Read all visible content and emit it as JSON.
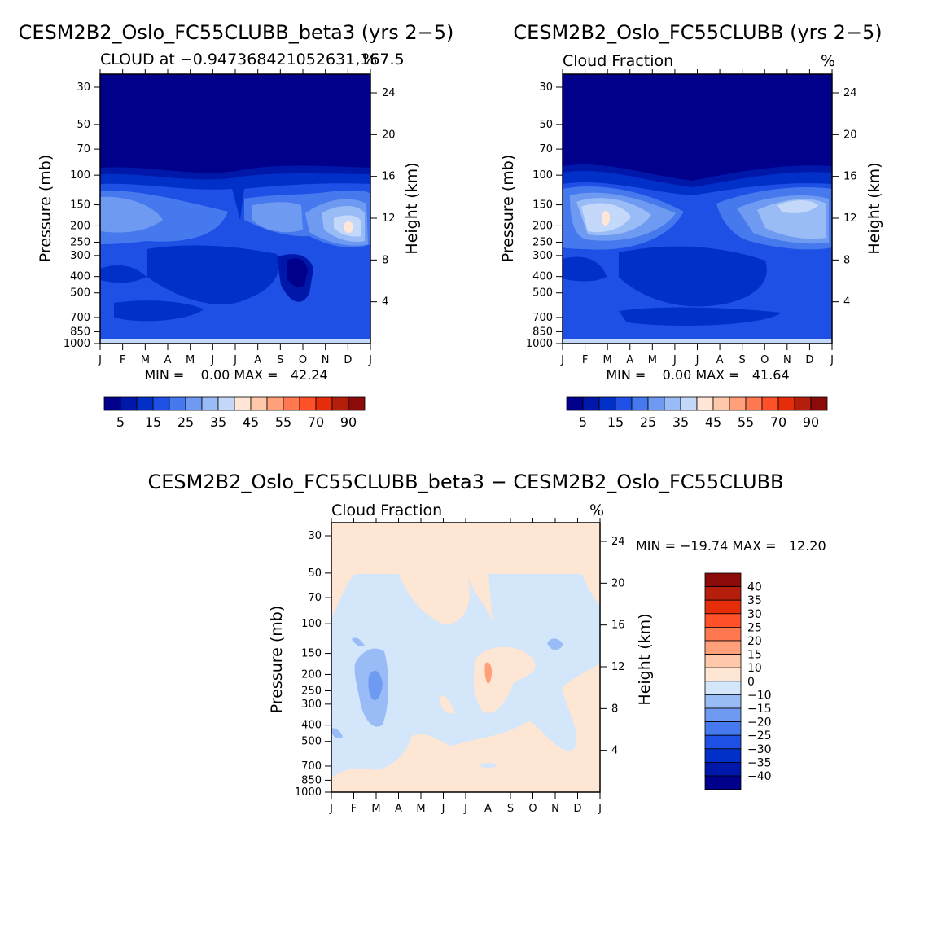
{
  "colors": {
    "blue_scale": [
      "#00008b",
      "#0018aa",
      "#0030c8",
      "#1e50e6",
      "#4678ee",
      "#6e9af2",
      "#9abcf6",
      "#c4d8fa"
    ],
    "warm_scale": [
      "#ffe6d6",
      "#ffc8aa",
      "#ffa07a",
      "#ff7850",
      "#ff5028",
      "#e62d0a",
      "#b41e0a",
      "#8b0a0a"
    ],
    "diff_scale": [
      "#00008b",
      "#0018aa",
      "#0030c8",
      "#1e50e6",
      "#4678ee",
      "#6e9af2",
      "#9abcf6",
      "#d4e6fa",
      "#fde6d4",
      "#ffc8aa",
      "#ffa07a",
      "#ff7850",
      "#ff5028",
      "#e62d0a",
      "#b41e0a",
      "#8b0a0a"
    ],
    "diff_negative": "#d4e6fa",
    "diff_positive": "#fde6d4",
    "diff_patch_blue": "#9abcf6",
    "diff_patch_orange": "#ffa07a"
  },
  "chart_data": [
    {
      "type": "heatmap",
      "title": "CESM2B2_Oslo_FC55CLUBB_beta3 (yrs 2−5)",
      "subtitle_left": "CLOUD at −0.947368421052631,167.5",
      "subtitle_right": "%",
      "xlabel": "",
      "ylabel": "Pressure (mb)",
      "ylabel_right": "Height (km)",
      "x_ticks": [
        "J",
        "F",
        "M",
        "A",
        "M",
        "J",
        "J",
        "A",
        "S",
        "O",
        "N",
        "D",
        "J"
      ],
      "y_ticks": [
        30,
        50,
        70,
        100,
        150,
        200,
        250,
        300,
        400,
        500,
        700,
        850,
        1000
      ],
      "y_right_ticks": [
        24,
        20,
        16,
        12,
        8,
        4
      ],
      "ylim": [
        30,
        1000
      ],
      "min_text": "MIN =    0.00 MAX =   42.24",
      "min": 0.0,
      "max": 42.24,
      "colorbar_labels": [
        "5",
        "15",
        "25",
        "35",
        "45",
        "55",
        "70",
        "90"
      ]
    },
    {
      "type": "heatmap",
      "title": "CESM2B2_Oslo_FC55CLUBB (yrs 2−5)",
      "subtitle_left": "Cloud Fraction",
      "subtitle_right": "%",
      "ylabel": "Pressure (mb)",
      "ylabel_right": "Height (km)",
      "x_ticks": [
        "J",
        "F",
        "M",
        "A",
        "M",
        "J",
        "J",
        "A",
        "S",
        "O",
        "N",
        "D",
        "J"
      ],
      "y_ticks": [
        30,
        50,
        70,
        100,
        150,
        200,
        250,
        300,
        400,
        500,
        700,
        850,
        1000
      ],
      "y_right_ticks": [
        24,
        20,
        16,
        12,
        8,
        4
      ],
      "ylim": [
        30,
        1000
      ],
      "min_text": "MIN =    0.00 MAX =   41.64",
      "min": 0.0,
      "max": 41.64,
      "colorbar_labels": [
        "5",
        "15",
        "25",
        "35",
        "45",
        "55",
        "70",
        "90"
      ]
    },
    {
      "type": "heatmap",
      "title": "CESM2B2_Oslo_FC55CLUBB_beta3 − CESM2B2_Oslo_FC55CLUBB",
      "subtitle_left": "Cloud Fraction",
      "subtitle_right": "%",
      "ylabel": "Pressure (mb)",
      "ylabel_right": "Height (km)",
      "x_ticks": [
        "J",
        "F",
        "M",
        "A",
        "M",
        "J",
        "J",
        "A",
        "S",
        "O",
        "N",
        "D",
        "J"
      ],
      "y_ticks": [
        30,
        50,
        70,
        100,
        150,
        200,
        250,
        300,
        400,
        500,
        700,
        850,
        1000
      ],
      "y_right_ticks": [
        24,
        20,
        16,
        12,
        8,
        4
      ],
      "ylim": [
        30,
        1000
      ],
      "min_text": "MIN = −19.74 MAX =   12.20",
      "min": -19.74,
      "max": 12.2,
      "colorbar_labels": [
        "40",
        "35",
        "30",
        "25",
        "20",
        "15",
        "10",
        "0",
        "−10",
        "−15",
        "−20",
        "−25",
        "−30",
        "−35",
        "−40"
      ]
    }
  ]
}
